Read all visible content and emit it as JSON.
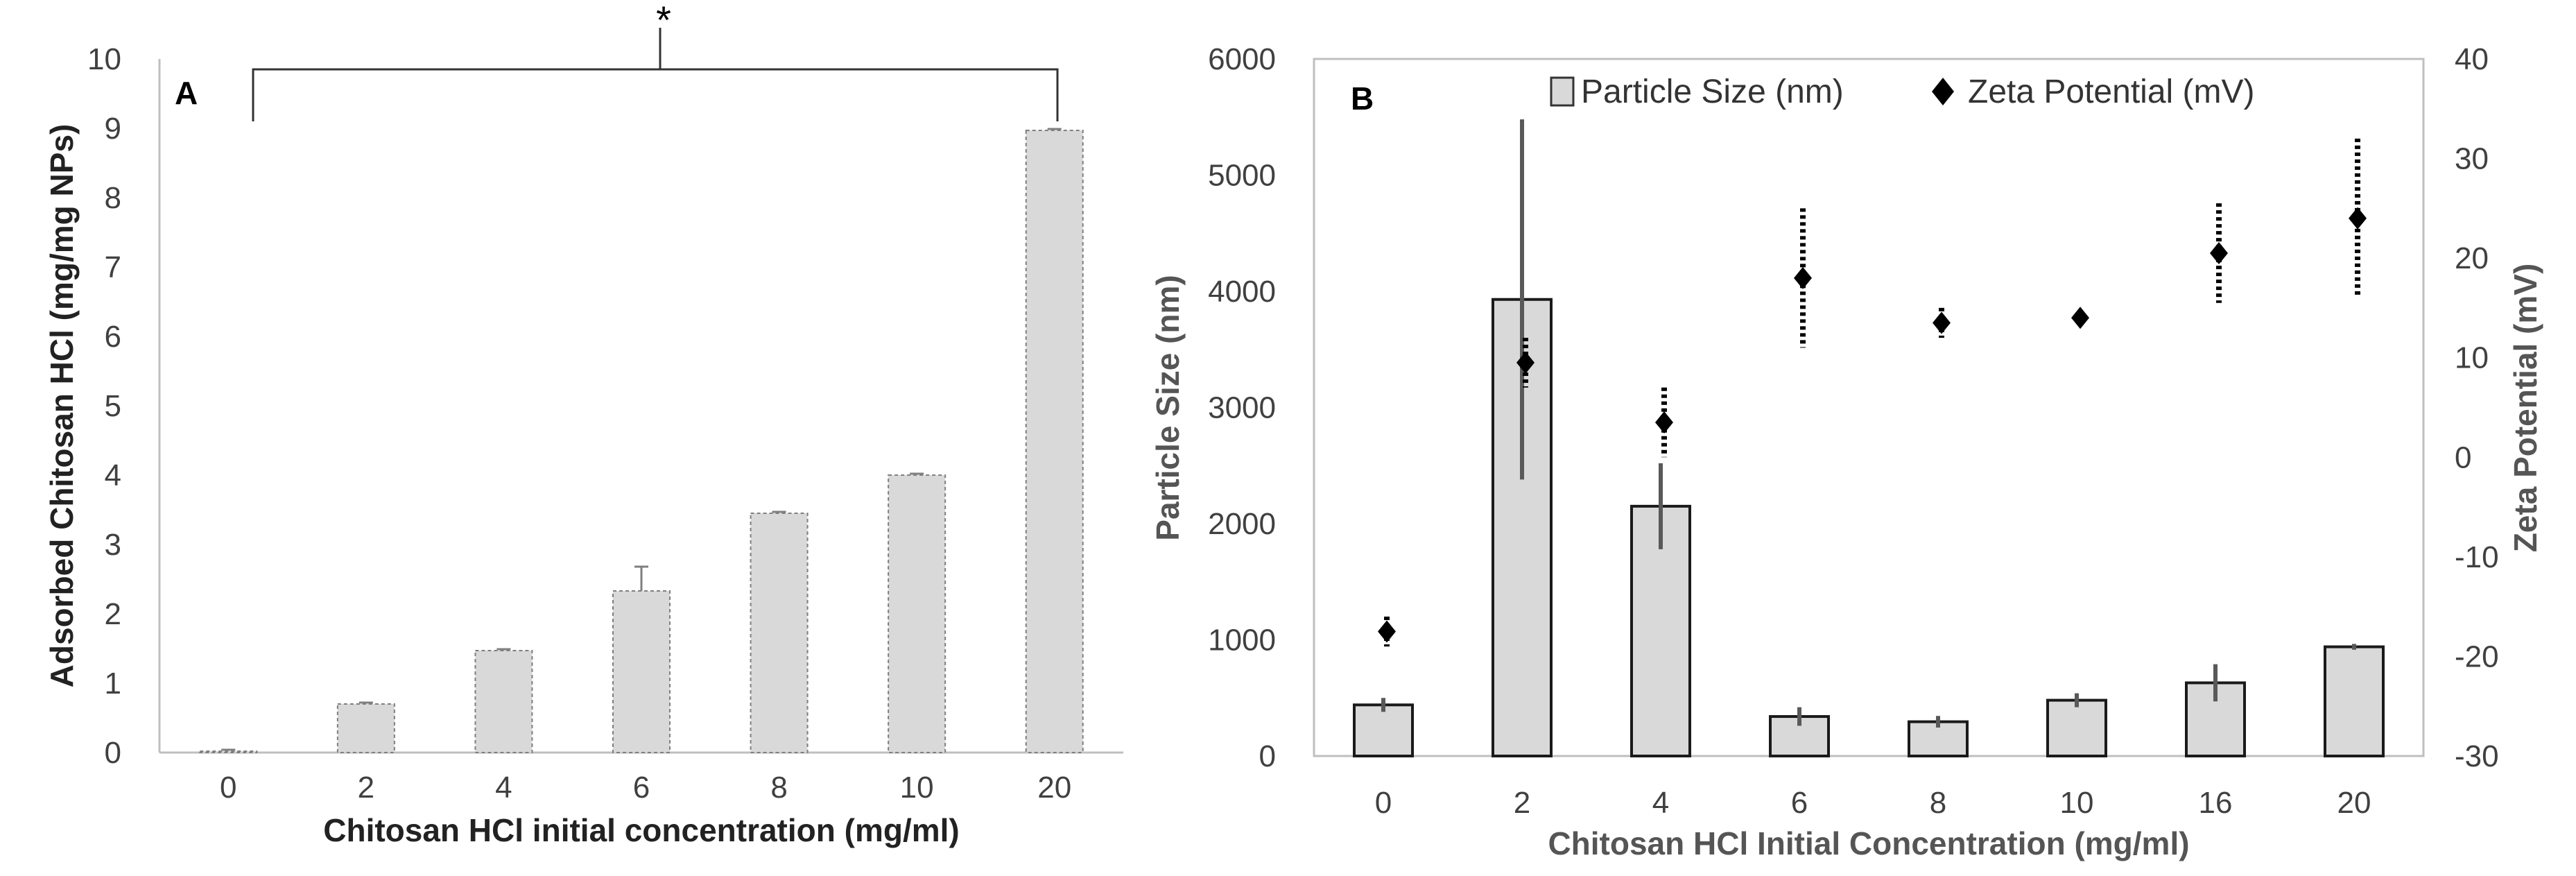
{
  "chart_data": [
    {
      "panel_label": "A",
      "type": "bar",
      "categories": [
        "0",
        "2",
        "4",
        "6",
        "8",
        "10",
        "20"
      ],
      "values": [
        0.02,
        0.7,
        1.47,
        2.33,
        3.45,
        4.0,
        8.97
      ],
      "errors": [
        0.02,
        0.02,
        0.02,
        0.35,
        0.03,
        0.02,
        0.02
      ],
      "xlabel": "Chitosan HCl initial  concentration (mg/ml)",
      "ylabel": "Adsorbed Chitosan HCl (mg/mg NPs)",
      "ylim": [
        0,
        10
      ],
      "yticks": [
        "0",
        "1",
        "2",
        "3",
        "4",
        "5",
        "6",
        "7",
        "8",
        "9",
        "10"
      ],
      "significance": "*",
      "bar_color": "#d9d9d9"
    },
    {
      "panel_label": "B",
      "type": "bar+scatter",
      "categories": [
        "0",
        "2",
        "4",
        "6",
        "8",
        "10",
        "16",
        "20"
      ],
      "series": [
        {
          "name": "Particle Size (nm)",
          "type": "bar",
          "axis": "left",
          "values": [
            440,
            3930,
            2150,
            340,
            295,
            480,
            630,
            940
          ],
          "errors": [
            60,
            1550,
            370,
            80,
            50,
            60,
            160,
            25
          ]
        },
        {
          "name": "Zeta Potential (mV)",
          "type": "scatter",
          "axis": "right",
          "values": [
            -17.5,
            9.5,
            3.5,
            18.0,
            13.5,
            14.0,
            20.5,
            24.0
          ],
          "errors": [
            1.5,
            2.5,
            3.5,
            7.0,
            1.5,
            0.5,
            5.0,
            8.0
          ]
        }
      ],
      "xlabel": "Chitosan HCl Initial Concentration (mg/ml)",
      "ylabel_left": "Particle Size (nm)",
      "ylabel_right": "Zeta Potential (mV)",
      "ylim_left": [
        0,
        6000
      ],
      "ylim_right": [
        -30,
        40
      ],
      "yticks_left": [
        "0",
        "1000",
        "2000",
        "3000",
        "4000",
        "5000",
        "6000"
      ],
      "yticks_right": [
        "-30",
        "-20",
        "-10",
        "0",
        "10",
        "20",
        "30",
        "40"
      ],
      "legend_position": "top",
      "bar_color": "#d9d9d9"
    }
  ]
}
